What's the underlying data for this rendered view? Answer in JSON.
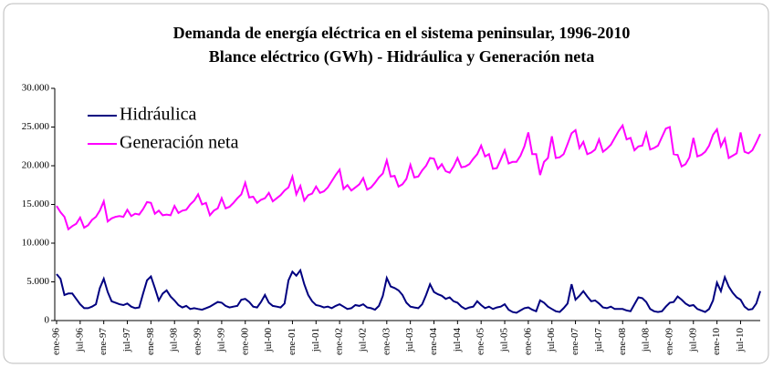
{
  "chart_data": {
    "type": "line",
    "title": "Demanda de energía eléctrica en el sistema peninsular, 1996-2010",
    "subtitle": "Blance eléctrico (GWh) - Hidráulica y Generación neta",
    "categories": [
      "ene-96",
      null,
      null,
      null,
      null,
      null,
      "jul-96",
      null,
      null,
      null,
      null,
      null,
      "ene-97",
      null,
      null,
      null,
      null,
      null,
      "jul-97",
      null,
      null,
      null,
      null,
      null,
      "ene-98",
      null,
      null,
      null,
      null,
      null,
      "jul-98",
      null,
      null,
      null,
      null,
      null,
      "ene-99",
      null,
      null,
      null,
      null,
      null,
      "jul-99",
      null,
      null,
      null,
      null,
      null,
      "ene-00",
      null,
      null,
      null,
      null,
      null,
      "jul-00",
      null,
      null,
      null,
      null,
      null,
      "ene-01",
      null,
      null,
      null,
      null,
      null,
      "jul-01",
      null,
      null,
      null,
      null,
      null,
      "ene-02",
      null,
      null,
      null,
      null,
      null,
      "jul-02",
      null,
      null,
      null,
      null,
      null,
      "ene-03",
      null,
      null,
      null,
      null,
      null,
      "jul-03",
      null,
      null,
      null,
      null,
      null,
      "ene-04",
      null,
      null,
      null,
      null,
      null,
      "jul-04",
      null,
      null,
      null,
      null,
      null,
      "ene-05",
      null,
      null,
      null,
      null,
      null,
      "jul-05",
      null,
      null,
      null,
      null,
      null,
      "ene-06",
      null,
      null,
      null,
      null,
      null,
      "jul-06",
      null,
      null,
      null,
      null,
      null,
      "ene-07",
      null,
      null,
      null,
      null,
      null,
      "jul-07",
      null,
      null,
      null,
      null,
      null,
      "ene-08",
      null,
      null,
      null,
      null,
      null,
      "jul-08",
      null,
      null,
      null,
      null,
      null,
      "ene-09",
      null,
      null,
      null,
      null,
      null,
      "jul-09",
      null,
      null,
      null,
      null,
      null,
      "ene-10",
      null,
      null,
      null,
      null,
      null,
      "jul-10",
      null,
      null,
      null,
      null,
      null
    ],
    "series": [
      {
        "name": "Hidráulica",
        "color": "#000080",
        "values": [
          6000,
          5400,
          3300,
          3500,
          3500,
          2800,
          2100,
          1600,
          1600,
          1800,
          2100,
          4200,
          5400,
          3700,
          2500,
          2300,
          2100,
          2000,
          2200,
          1800,
          1600,
          1700,
          3500,
          5200,
          5700,
          4200,
          2600,
          3500,
          3900,
          3100,
          2600,
          2000,
          1700,
          1900,
          1500,
          1600,
          1500,
          1400,
          1600,
          1800,
          2100,
          2400,
          2300,
          1900,
          1700,
          1800,
          1900,
          2700,
          2800,
          2400,
          1800,
          1700,
          2400,
          3300,
          2300,
          1900,
          1800,
          1700,
          2200,
          5200,
          6300,
          5800,
          6500,
          4700,
          3300,
          2500,
          2000,
          1900,
          1700,
          1800,
          1600,
          1900,
          2100,
          1800,
          1500,
          1600,
          2000,
          1900,
          2100,
          1700,
          1600,
          1400,
          1900,
          3200,
          5500,
          4400,
          4200,
          3900,
          3300,
          2300,
          1800,
          1700,
          1600,
          2100,
          3300,
          4700,
          3700,
          3400,
          3200,
          2800,
          3000,
          2500,
          2300,
          1800,
          1500,
          1700,
          1800,
          2500,
          2000,
          1600,
          1800,
          1500,
          1700,
          1800,
          2100,
          1400,
          1100,
          1000,
          1300,
          1600,
          1700,
          1400,
          1200,
          2600,
          2300,
          1800,
          1500,
          1200,
          1100,
          1600,
          2200,
          4700,
          2700,
          3200,
          3800,
          3100,
          2500,
          2600,
          2200,
          1700,
          1600,
          1800,
          1500,
          1500,
          1500,
          1300,
          1200,
          2100,
          3000,
          2900,
          2400,
          1500,
          1200,
          1100,
          1200,
          1800,
          2300,
          2400,
          3100,
          2700,
          2200,
          1900,
          2000,
          1500,
          1300,
          1100,
          1500,
          2600,
          4900,
          3800,
          5600,
          4400,
          3600,
          3000,
          2700,
          1800,
          1400,
          1500,
          2200,
          3800
        ]
      },
      {
        "name": "Generación neta",
        "color": "#ff00ff",
        "values": [
          14800,
          14000,
          13400,
          11800,
          12200,
          12500,
          13300,
          12000,
          12300,
          13000,
          13400,
          14200,
          15400,
          12800,
          13200,
          13400,
          13500,
          13400,
          14300,
          13500,
          13800,
          13700,
          14400,
          15300,
          15200,
          13800,
          14200,
          13600,
          13700,
          13600,
          14800,
          13900,
          14200,
          14300,
          15000,
          15500,
          16300,
          15000,
          15200,
          13600,
          14200,
          14500,
          15800,
          14500,
          14700,
          15200,
          15800,
          16300,
          17800,
          15900,
          16000,
          15200,
          15600,
          15800,
          16500,
          15400,
          15800,
          16200,
          16800,
          17200,
          18600,
          16300,
          17400,
          15500,
          16200,
          16400,
          17300,
          16500,
          16700,
          17200,
          18000,
          18800,
          19500,
          17000,
          17500,
          16800,
          17200,
          17600,
          18400,
          16900,
          17200,
          17800,
          18500,
          19000,
          20700,
          18600,
          18700,
          17300,
          17600,
          18300,
          20100,
          18500,
          18600,
          19400,
          20000,
          21000,
          20900,
          19600,
          20200,
          19300,
          19100,
          19900,
          21000,
          19800,
          19900,
          20200,
          20900,
          21500,
          22600,
          21200,
          21500,
          19600,
          19700,
          20800,
          22000,
          20300,
          20500,
          20500,
          21300,
          22500,
          24300,
          21500,
          21500,
          18800,
          20500,
          21000,
          23800,
          21000,
          21100,
          21500,
          22800,
          24200,
          24600,
          22300,
          23100,
          21500,
          21700,
          22100,
          23400,
          21800,
          22200,
          22700,
          23600,
          24500,
          25200,
          23400,
          23600,
          22000,
          22500,
          22600,
          24200,
          22100,
          22300,
          22600,
          23700,
          24800,
          25000,
          21500,
          21400,
          19900,
          20200,
          21100,
          23600,
          21200,
          21400,
          21800,
          22600,
          24000,
          24700,
          22500,
          23500,
          21000,
          21300,
          21600,
          24300,
          21800,
          21600,
          22000,
          23000,
          24100
        ]
      }
    ],
    "ylim": [
      0,
      30000
    ],
    "yticks": [
      {
        "value": 0,
        "label": "0"
      },
      {
        "value": 5000,
        "label": "5.000"
      },
      {
        "value": 10000,
        "label": "10.000"
      },
      {
        "value": 15000,
        "label": "15.000"
      },
      {
        "value": 20000,
        "label": "20.000"
      },
      {
        "value": 25000,
        "label": "25.000"
      },
      {
        "value": 30000,
        "label": "30.000"
      }
    ],
    "grid": false,
    "legend": "upper left"
  }
}
